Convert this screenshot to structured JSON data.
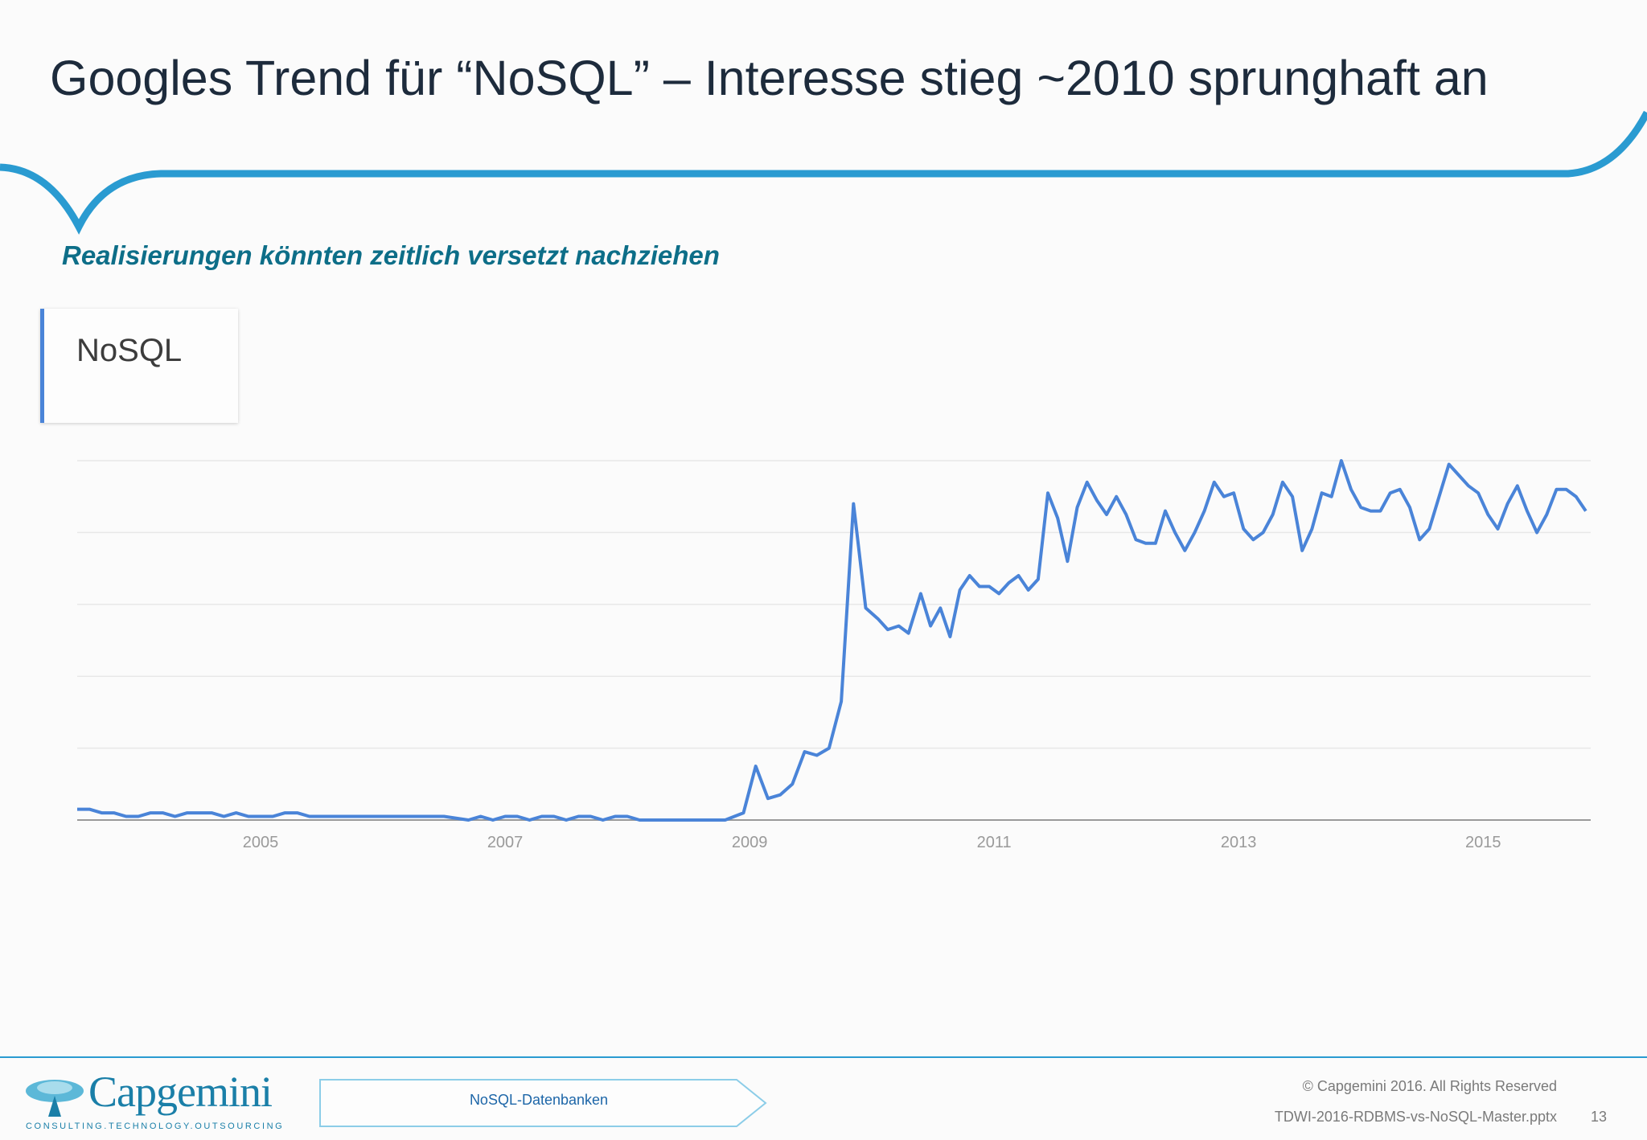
{
  "slide": {
    "title": "Googles Trend für “NoSQL” – Interesse stieg ~2010 sprunghaft an",
    "subtitle": "Realisierungen könnten zeitlich versetzt nachziehen"
  },
  "legend": {
    "series_label": "NoSQL"
  },
  "chart_data": {
    "type": "line",
    "x_ticks": [
      "2005",
      "2007",
      "2009",
      "2011",
      "2013",
      "2015"
    ],
    "xlim": [
      2004.0,
      2016.38
    ],
    "ylim": [
      0,
      100
    ],
    "grid": true,
    "line_color": "#4a84d8",
    "series": [
      {
        "name": "NoSQL",
        "points": [
          [
            2004.0,
            3
          ],
          [
            2004.1,
            3
          ],
          [
            2004.2,
            2
          ],
          [
            2004.3,
            2
          ],
          [
            2004.4,
            1
          ],
          [
            2004.5,
            1
          ],
          [
            2004.6,
            2
          ],
          [
            2004.7,
            2
          ],
          [
            2004.8,
            1
          ],
          [
            2004.9,
            2
          ],
          [
            2005.0,
            2
          ],
          [
            2005.1,
            2
          ],
          [
            2005.2,
            1
          ],
          [
            2005.3,
            2
          ],
          [
            2005.4,
            1
          ],
          [
            2005.5,
            1
          ],
          [
            2005.6,
            1
          ],
          [
            2005.7,
            2
          ],
          [
            2005.8,
            2
          ],
          [
            2005.9,
            1
          ],
          [
            2006.0,
            1
          ],
          [
            2006.5,
            1
          ],
          [
            2007.0,
            1
          ],
          [
            2007.2,
            0
          ],
          [
            2007.3,
            1
          ],
          [
            2007.4,
            0
          ],
          [
            2007.5,
            1
          ],
          [
            2007.6,
            1
          ],
          [
            2007.7,
            0
          ],
          [
            2007.8,
            1
          ],
          [
            2007.9,
            1
          ],
          [
            2008.0,
            0
          ],
          [
            2008.1,
            1
          ],
          [
            2008.2,
            1
          ],
          [
            2008.3,
            0
          ],
          [
            2008.4,
            1
          ],
          [
            2008.5,
            1
          ],
          [
            2008.6,
            0
          ],
          [
            2009.0,
            0
          ],
          [
            2009.3,
            0
          ],
          [
            2009.45,
            2
          ],
          [
            2009.55,
            15
          ],
          [
            2009.65,
            6
          ],
          [
            2009.75,
            7
          ],
          [
            2009.85,
            10
          ],
          [
            2009.95,
            19
          ],
          [
            2010.05,
            18
          ],
          [
            2010.15,
            20
          ],
          [
            2010.25,
            33
          ],
          [
            2010.35,
            88
          ],
          [
            2010.45,
            59
          ],
          [
            2010.55,
            56
          ],
          [
            2010.63,
            53
          ],
          [
            2010.72,
            54
          ],
          [
            2010.8,
            52
          ],
          [
            2010.9,
            63
          ],
          [
            2010.98,
            54
          ],
          [
            2011.06,
            59
          ],
          [
            2011.14,
            51
          ],
          [
            2011.22,
            64
          ],
          [
            2011.3,
            68
          ],
          [
            2011.38,
            65
          ],
          [
            2011.46,
            65
          ],
          [
            2011.54,
            63
          ],
          [
            2011.62,
            66
          ],
          [
            2011.7,
            68
          ],
          [
            2011.78,
            64
          ],
          [
            2011.86,
            67
          ],
          [
            2011.94,
            91
          ],
          [
            2012.02,
            84
          ],
          [
            2012.1,
            72
          ],
          [
            2012.18,
            87
          ],
          [
            2012.26,
            94
          ],
          [
            2012.34,
            89
          ],
          [
            2012.42,
            85
          ],
          [
            2012.5,
            90
          ],
          [
            2012.58,
            85
          ],
          [
            2012.66,
            78
          ],
          [
            2012.74,
            77
          ],
          [
            2012.82,
            77
          ],
          [
            2012.9,
            86
          ],
          [
            2012.98,
            80
          ],
          [
            2013.06,
            75
          ],
          [
            2013.14,
            80
          ],
          [
            2013.22,
            86
          ],
          [
            2013.3,
            94
          ],
          [
            2013.38,
            90
          ],
          [
            2013.46,
            91
          ],
          [
            2013.54,
            81
          ],
          [
            2013.62,
            78
          ],
          [
            2013.7,
            80
          ],
          [
            2013.78,
            85
          ],
          [
            2013.86,
            94
          ],
          [
            2013.94,
            90
          ],
          [
            2014.02,
            75
          ],
          [
            2014.1,
            81
          ],
          [
            2014.18,
            91
          ],
          [
            2014.26,
            90
          ],
          [
            2014.34,
            100
          ],
          [
            2014.42,
            92
          ],
          [
            2014.5,
            87
          ],
          [
            2014.58,
            86
          ],
          [
            2014.66,
            86
          ],
          [
            2014.74,
            91
          ],
          [
            2014.82,
            92
          ],
          [
            2014.9,
            87
          ],
          [
            2014.98,
            78
          ],
          [
            2015.06,
            81
          ],
          [
            2015.14,
            90
          ],
          [
            2015.22,
            99
          ],
          [
            2015.3,
            96
          ],
          [
            2015.38,
            93
          ],
          [
            2015.46,
            91
          ],
          [
            2015.54,
            85
          ],
          [
            2015.62,
            81
          ],
          [
            2015.7,
            88
          ],
          [
            2015.78,
            93
          ],
          [
            2015.86,
            86
          ],
          [
            2015.94,
            80
          ],
          [
            2016.02,
            85
          ],
          [
            2016.1,
            92
          ],
          [
            2016.18,
            92
          ],
          [
            2016.26,
            90
          ],
          [
            2016.34,
            86
          ]
        ]
      }
    ]
  },
  "footer": {
    "logo_text": "Capgemini",
    "logo_tagline": "CONSULTING.TECHNOLOGY.OUTSOURCING",
    "section_label": "NoSQL-Datenbanken",
    "copyright": "© Capgemini 2016. All Rights Reserved",
    "filename": "TDWI-2016-RDBMS-vs-NoSQL-Master.pptx",
    "page_number": "13"
  }
}
